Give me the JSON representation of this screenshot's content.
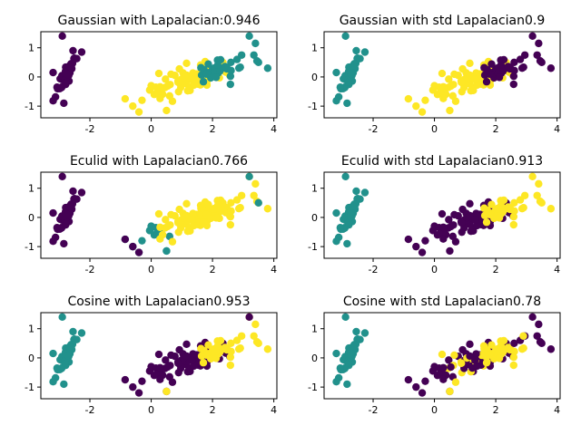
{
  "chart_data": {
    "type": "scatter",
    "layout": "3x2 grid of subplots",
    "xlim": [
      -3.6,
      4.1
    ],
    "ylim": [
      -1.4,
      1.55
    ],
    "x_ticks": [
      "-2",
      "0",
      "2",
      "4"
    ],
    "y_ticks": [
      "-1",
      "0",
      "1"
    ],
    "colors": {
      "purple": "#440154",
      "teal": "#21918c",
      "yellow": "#fde725"
    },
    "clusters": {
      "setosa_like": {
        "cx": -2.75,
        "cy": 0.1,
        "sx": 0.17,
        "sy": 0.33,
        "rho": 0.9,
        "n": 50,
        "extra_points": [
          [
            -3.2,
            0.15
          ],
          [
            -2.9,
            1.4
          ],
          [
            -2.85,
            -0.9
          ],
          [
            -2.55,
            0.9
          ]
        ]
      },
      "left_group": [
        [
          -0.85,
          -0.75
        ],
        [
          -0.6,
          -1.0
        ],
        [
          -0.4,
          -1.2
        ],
        [
          -0.3,
          -0.8
        ],
        [
          -0.05,
          -0.45
        ],
        [
          0.0,
          -0.3
        ],
        [
          0.1,
          -0.6
        ],
        [
          0.15,
          -0.35
        ],
        [
          0.2,
          -0.55
        ],
        [
          0.35,
          -0.4
        ],
        [
          0.5,
          -1.15
        ],
        [
          0.6,
          -0.65
        ]
      ],
      "right_tail": [
        [
          2.6,
          0.5
        ],
        [
          2.8,
          0.6
        ],
        [
          2.95,
          0.75
        ],
        [
          3.2,
          1.4
        ],
        [
          3.35,
          0.75
        ],
        [
          3.4,
          1.15
        ],
        [
          3.45,
          0.55
        ],
        [
          3.5,
          0.5
        ],
        [
          3.8,
          0.3
        ]
      ],
      "middle_group": {
        "cx": 1.35,
        "cy": 0.0,
        "sx": 0.55,
        "sy": 0.28,
        "rho": 0.55,
        "n": 70,
        "x_range": [
          0.2,
          2.6
        ]
      },
      "right_group": {
        "cx": 2.3,
        "cy": 0.2,
        "sx": 0.45,
        "sy": 0.25,
        "rho": 0.3,
        "n": 30,
        "x_range": [
          1.6,
          3.0
        ]
      }
    },
    "subplots": [
      {
        "title": "Gaussian with Lapalacian:0.946",
        "colors": {
          "setosa_like": "purple",
          "left_group": "yellow",
          "middle_group": "yellow",
          "right_group": "teal",
          "right_tail": "teal"
        }
      },
      {
        "title": "Gaussian with std Lapalacian0.9",
        "colors": {
          "setosa_like": "teal",
          "left_group": "yellow",
          "middle_group": "yellow",
          "right_group": "purple",
          "right_tail": "purple"
        }
      },
      {
        "title": "Eculid with Lapalacian0.766",
        "colors": {
          "setosa_like": "purple",
          "left_group": "teal",
          "middle_group": "yellow",
          "right_group": "yellow",
          "right_tail": "yellow"
        },
        "note_points": [
          [
            3.2,
            1.4,
            "teal"
          ],
          [
            3.5,
            0.5,
            "teal"
          ],
          [
            0.5,
            -1.15,
            "teal"
          ],
          [
            -0.85,
            -0.75,
            "purple"
          ],
          [
            -0.6,
            -1.0,
            "purple"
          ],
          [
            -0.4,
            -1.2,
            "purple"
          ]
        ]
      },
      {
        "title": "Eculid with std Lapalacian0.913",
        "colors": {
          "setosa_like": "teal",
          "left_group": "purple",
          "middle_group": "purple",
          "right_group": "yellow",
          "right_tail": "yellow"
        }
      },
      {
        "title": "Cosine with Lapalacian0.953",
        "colors": {
          "setosa_like": "teal",
          "left_group": "purple",
          "middle_group": "purple",
          "right_group": "yellow",
          "right_tail": "yellow"
        },
        "note_points": [
          [
            0.5,
            -1.15,
            "yellow"
          ],
          [
            3.2,
            1.4,
            "purple"
          ]
        ]
      },
      {
        "title": "Cosine with std Lapalacian0.78",
        "colors": {
          "setosa_like": "teal",
          "left_group": "purple",
          "middle_group": "mixed",
          "right_group": "yellow",
          "right_tail": "purple"
        },
        "mixed_yellow_fraction": 0.35,
        "note_points": [
          [
            0.5,
            -1.15,
            "yellow"
          ],
          [
            2.9,
            0.75,
            "yellow"
          ]
        ]
      }
    ]
  }
}
